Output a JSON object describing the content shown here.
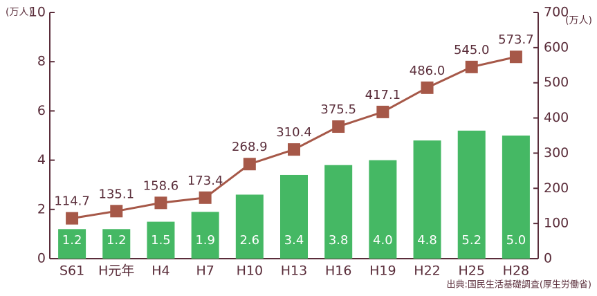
{
  "chart_data": {
    "type": "bar_line",
    "ylabel": "(万人)",
    "y2label": "(万人)",
    "note": "出典:国民生活基礎調査(厚生労働省)",
    "categories": [
      "S61",
      "H元年",
      "H4",
      "H7",
      "H10",
      "H13",
      "H16",
      "H19",
      "H22",
      "H25",
      "H28"
    ],
    "series": [
      {
        "type": "bar",
        "color": "#45b864",
        "axis": "y",
        "values": [
          1.2,
          1.2,
          1.5,
          1.9,
          2.6,
          3.4,
          3.8,
          4.0,
          4.8,
          5.2,
          5.0
        ],
        "value_labels": [
          "1.2",
          "1.2",
          "1.5",
          "1.9",
          "2.6",
          "3.4",
          "3.8",
          "4.0",
          "4.8",
          "5.2",
          "5.0"
        ]
      },
      {
        "type": "line",
        "color": "#a65848",
        "axis": "y2",
        "values": [
          114.7,
          135.1,
          158.6,
          173.4,
          268.9,
          310.4,
          375.5,
          417.1,
          486.0,
          545.0,
          573.7
        ],
        "value_labels": [
          "114.7",
          "135.1",
          "158.6",
          "173.4",
          "268.9",
          "310.4",
          "375.5",
          "417.1",
          "486.0",
          "545.0",
          "573.7"
        ]
      }
    ],
    "ylim": [
      0,
      10
    ],
    "yticks": [
      0,
      2,
      4,
      6,
      8,
      10
    ],
    "y2lim": [
      0,
      700
    ],
    "y2ticks": [
      0,
      100,
      200,
      300,
      400,
      500,
      600,
      700
    ]
  }
}
